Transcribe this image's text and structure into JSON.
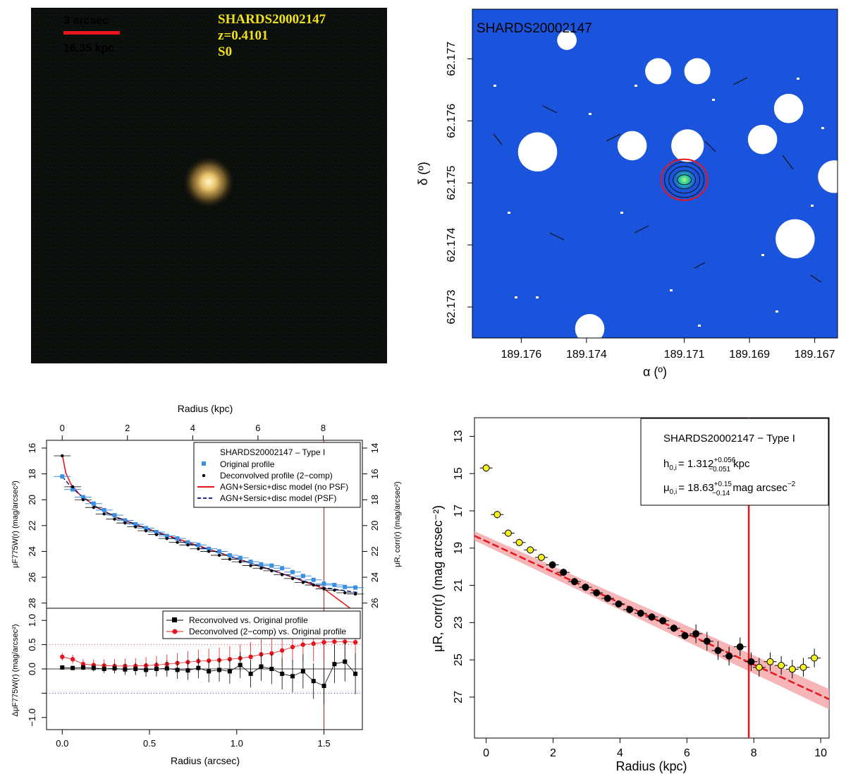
{
  "chart_data": [
    {
      "type": "image",
      "panel": "color-stamp",
      "scale_bar": {
        "angular": "3 arcsec",
        "physical": "16.35 kpc",
        "color": "#e8161c"
      },
      "labels": {
        "name": "SHARDS20002147",
        "redshift": "z=0.4101",
        "morph": "S0",
        "color": "#f2e21b"
      }
    },
    {
      "type": "image",
      "panel": "sky-map",
      "label": "SHARDS20002147",
      "xlabel": "α (º)",
      "ylabel": "δ (º)",
      "xlim": [
        189.1775,
        189.1663
      ],
      "ylim": [
        62.1725,
        62.1778
      ],
      "xticks": [
        189.176,
        189.174,
        189.171,
        189.169,
        189.167
      ],
      "yticks": [
        62.173,
        62.174,
        62.175,
        62.176,
        62.177
      ],
      "source_center": [
        189.171,
        62.17505
      ],
      "masks": [
        {
          "ra": 189.1755,
          "dec": 62.1755,
          "r": 0.0006
        },
        {
          "ra": 189.1726,
          "dec": 62.1756,
          "r": 0.00045
        },
        {
          "ra": 189.1709,
          "dec": 62.1756,
          "r": 0.0005
        },
        {
          "ra": 189.1686,
          "dec": 62.1757,
          "r": 0.00045
        },
        {
          "ra": 189.1718,
          "dec": 62.1768,
          "r": 0.0004
        },
        {
          "ra": 189.1706,
          "dec": 62.1768,
          "r": 0.0004
        },
        {
          "ra": 189.1678,
          "dec": 62.1762,
          "r": 0.00045
        },
        {
          "ra": 189.1664,
          "dec": 62.1751,
          "r": 0.0005
        },
        {
          "ra": 189.1676,
          "dec": 62.1741,
          "r": 0.0006
        },
        {
          "ra": 189.1739,
          "dec": 62.17265,
          "r": 0.00045
        },
        {
          "ra": 189.1746,
          "dec": 62.1773,
          "r": 0.0003
        }
      ]
    },
    {
      "type": "line",
      "panel": "surface-brightness-profile",
      "top_axis": {
        "label": "Radius (kpc)",
        "ticks": [
          0,
          2,
          4,
          6,
          8
        ],
        "lim": [
          -0.48,
          9.2
        ]
      },
      "ylabel_left": "μF775W(r) (mag/arcsec²)",
      "ylabel_right": "μR, corr(r) (mag/arcsec²)",
      "yticks_left": [
        16,
        18,
        20,
        22,
        24,
        26,
        28
      ],
      "yticks_right": [
        14,
        16,
        18,
        20,
        22,
        24,
        26
      ],
      "ylim_left": [
        28.4,
        15.4
      ],
      "xlim": [
        -0.09,
        1.72
      ],
      "legend": {
        "title": "SHARDS20002147  –  Type I",
        "entries": [
          "Original profile",
          "Deconvolved profile (2−comp)",
          "AGN+Sersic+disc model (no PSF)",
          "AGN+Sersic+disc model (PSF)"
        ]
      },
      "vline_arcsec": 1.5,
      "series": [
        {
          "name": "Original profile",
          "color": "#3b8fe3",
          "x": [
            0,
            0.06,
            0.12,
            0.18,
            0.24,
            0.3,
            0.36,
            0.42,
            0.48,
            0.54,
            0.6,
            0.66,
            0.72,
            0.78,
            0.84,
            0.9,
            0.96,
            1.02,
            1.08,
            1.14,
            1.2,
            1.26,
            1.32,
            1.38,
            1.44,
            1.5,
            1.56,
            1.62,
            1.68
          ],
          "y": [
            18.2,
            19.2,
            19.8,
            20.3,
            20.8,
            21.2,
            21.6,
            21.9,
            22.2,
            22.5,
            22.8,
            23.0,
            23.3,
            23.5,
            23.8,
            24.0,
            24.3,
            24.5,
            24.8,
            25.0,
            25.1,
            25.3,
            25.6,
            25.9,
            26.2,
            26.5,
            26.6,
            26.75,
            26.8
          ]
        },
        {
          "name": "Deconvolved profile (2-comp)",
          "color": "#000000",
          "x": [
            0,
            0.06,
            0.12,
            0.18,
            0.24,
            0.3,
            0.36,
            0.42,
            0.48,
            0.54,
            0.6,
            0.66,
            0.72,
            0.78,
            0.84,
            0.9,
            0.96,
            1.02,
            1.08,
            1.14,
            1.2,
            1.26,
            1.32,
            1.38,
            1.44,
            1.5,
            1.56,
            1.62,
            1.68
          ],
          "y": [
            16.6,
            19.0,
            20.0,
            20.6,
            21.1,
            21.5,
            21.8,
            22.1,
            22.4,
            22.7,
            23.0,
            23.3,
            23.5,
            23.8,
            24.0,
            24.3,
            24.6,
            24.8,
            25.1,
            25.3,
            25.5,
            25.8,
            26.1,
            26.4,
            26.6,
            26.9,
            27.0,
            27.2,
            27.3
          ]
        },
        {
          "name": "AGN+Sersic+disc model (no PSF)",
          "color": "#e8161c",
          "x": [
            0,
            0.02,
            0.05,
            0.1,
            0.2,
            0.3,
            0.5,
            0.7,
            0.9,
            1.1,
            1.3,
            1.5,
            1.65
          ],
          "y": [
            16.5,
            17.9,
            18.8,
            19.6,
            20.6,
            21.3,
            22.3,
            23.2,
            24.1,
            25.0,
            25.9,
            26.9,
            28.4
          ]
        },
        {
          "name": "AGN+Sersic+disc model (PSF)",
          "color": "#1a2c8c",
          "x": [
            0,
            0.05,
            0.1,
            0.2,
            0.3,
            0.5,
            0.7,
            0.9,
            1.1,
            1.3,
            1.5,
            1.7
          ],
          "y": [
            18.2,
            19.0,
            19.6,
            20.6,
            21.3,
            22.3,
            23.3,
            24.1,
            25.0,
            25.9,
            26.8,
            27.2
          ]
        }
      ]
    },
    {
      "type": "scatter",
      "panel": "residuals",
      "xlabel": "Radius (arcsec)",
      "ylabel": "ΔμF775W(r) (mag/arcsec²)",
      "xticks": [
        0.0,
        0.5,
        1.0,
        1.5
      ],
      "xtick_labels": [
        "0.0",
        "0.5",
        "1.0",
        "1.5"
      ],
      "yticks": [
        -1.0,
        -0.5,
        0.0,
        0.5,
        1.0
      ],
      "ytick_labels": [
        "−1.0",
        "",
        "0.0",
        "0.5",
        "1.0"
      ],
      "ylim": [
        -1.25,
        1.25
      ],
      "xlim": [
        -0.09,
        1.72
      ],
      "legend": [
        "Reconvolved vs. Original profile",
        "Deconvolved (2−comp) vs. Original profile"
      ],
      "series": [
        {
          "name": "Reconvolved vs. Original",
          "color": "#000000",
          "x": [
            0,
            0.06,
            0.12,
            0.18,
            0.24,
            0.3,
            0.36,
            0.42,
            0.48,
            0.54,
            0.6,
            0.66,
            0.72,
            0.78,
            0.84,
            0.9,
            0.96,
            1.02,
            1.08,
            1.14,
            1.2,
            1.26,
            1.32,
            1.38,
            1.44,
            1.5,
            1.56,
            1.62,
            1.68
          ],
          "y": [
            0.03,
            0.02,
            0.03,
            0.02,
            0.0,
            0.01,
            -0.01,
            0.0,
            -0.02,
            0.0,
            0.01,
            -0.02,
            -0.03,
            0.02,
            -0.05,
            -0.02,
            -0.05,
            0.08,
            -0.1,
            0.05,
            0.0,
            -0.1,
            -0.15,
            -0.05,
            -0.25,
            -0.35,
            0.1,
            0.15,
            -0.1
          ]
        },
        {
          "name": "Deconvolved (2-comp) vs. Original",
          "color": "#e8161c",
          "x": [
            0,
            0.06,
            0.12,
            0.18,
            0.24,
            0.3,
            0.36,
            0.42,
            0.48,
            0.54,
            0.6,
            0.66,
            0.72,
            0.78,
            0.84,
            0.9,
            0.96,
            1.02,
            1.08,
            1.14,
            1.2,
            1.26,
            1.32,
            1.38,
            1.44,
            1.5,
            1.56,
            1.62,
            1.68
          ],
          "y": [
            0.25,
            0.2,
            0.1,
            0.08,
            0.07,
            0.06,
            0.06,
            0.06,
            0.07,
            0.08,
            0.1,
            0.12,
            0.14,
            0.16,
            0.17,
            0.18,
            0.2,
            0.22,
            0.25,
            0.3,
            0.32,
            0.38,
            0.45,
            0.5,
            0.52,
            0.55,
            0.56,
            0.56,
            0.55
          ]
        }
      ]
    },
    {
      "type": "scatter",
      "panel": "corrected-profile-fit",
      "xlabel": "Radius (kpc)",
      "ylabel": "μR, corr(r) (mag arcsec⁻²)",
      "xticks": [
        0,
        2,
        4,
        6,
        8,
        10
      ],
      "yticks": [
        13,
        15,
        17,
        19,
        21,
        23,
        25,
        27
      ],
      "xlim": [
        -0.35,
        10.25
      ],
      "ylim": [
        29.2,
        12.0
      ],
      "legend": {
        "title": "SHARDS20002147  − Type I",
        "h_label": "h",
        "h_sub": "0,i",
        "h_val": "= 1.312",
        "h_sup": "+0.056",
        "h_down": "−0.051",
        "h_unit": "kpc",
        "mu_label": "μ",
        "mu_sub": "0,i",
        "mu_val": "= 18.63",
        "mu_sup": "+0.15",
        "mu_down": "−0.14",
        "mu_unit": "mag arcsec",
        "mu_exp": "−2"
      },
      "fit": {
        "mu0": 18.63,
        "h": 1.312,
        "color": "#e8161c"
      },
      "vline_kpc": 7.85,
      "series": [
        {
          "name": "excluded points",
          "color": "#f5f01e",
          "x": [
            0.0,
            0.33,
            0.66,
            0.99,
            1.32,
            1.65,
            8.16,
            8.49,
            8.82,
            9.15,
            9.48,
            9.81
          ],
          "y": [
            14.7,
            17.2,
            18.2,
            18.7,
            19.1,
            19.5,
            25.4,
            25.1,
            25.3,
            25.5,
            25.4,
            24.9
          ]
        },
        {
          "name": "fitted points",
          "color": "#000000",
          "x": [
            1.98,
            2.31,
            2.64,
            2.97,
            3.3,
            3.63,
            3.96,
            4.29,
            4.62,
            4.95,
            5.28,
            5.61,
            5.94,
            6.27,
            6.6,
            6.93,
            7.26,
            7.59,
            7.92
          ],
          "y": [
            19.9,
            20.3,
            20.8,
            21.1,
            21.4,
            21.7,
            22.0,
            22.3,
            22.5,
            22.7,
            22.9,
            23.3,
            23.7,
            23.6,
            24.0,
            24.5,
            24.8,
            24.3,
            25.1
          ]
        }
      ]
    }
  ]
}
